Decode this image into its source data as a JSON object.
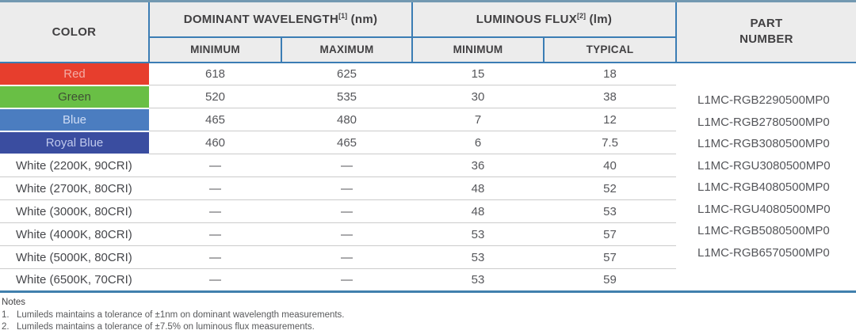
{
  "table": {
    "headers": {
      "color": "COLOR",
      "dominant_wavelength": "DOMINANT WAVELENGTH",
      "dominant_wavelength_ref": "[1]",
      "dominant_wavelength_unit": " (nm)",
      "luminous_flux": "LUMINOUS FLUX",
      "luminous_flux_ref": "[2]",
      "luminous_flux_unit": " (lm)",
      "part_line1": "PART",
      "part_line2": "NUMBER",
      "wl_min": "MINIMUM",
      "wl_max": "MAXIMUM",
      "flux_min": "MINIMUM",
      "flux_typ": "TYPICAL"
    },
    "rows": [
      {
        "label": "Red",
        "swatch": "#e73e2d",
        "label_color": "#f3aca4",
        "wl_min": "618",
        "wl_max": "625",
        "flux_min": "15",
        "flux_typ": "18"
      },
      {
        "label": "Green",
        "swatch": "#69bf45",
        "label_color": "#3f4f35",
        "wl_min": "520",
        "wl_max": "535",
        "flux_min": "30",
        "flux_typ": "38"
      },
      {
        "label": "Blue",
        "swatch": "#4b7dc0",
        "label_color": "#cfdcf4",
        "wl_min": "465",
        "wl_max": "480",
        "flux_min": "7",
        "flux_typ": "12"
      },
      {
        "label": "Royal Blue",
        "swatch": "#3a4da0",
        "label_color": "#bfc9ec",
        "wl_min": "460",
        "wl_max": "465",
        "flux_min": "6",
        "flux_typ": "7.5"
      },
      {
        "label": "White (2200K, 90CRI)",
        "swatch": null,
        "label_color": null,
        "wl_min": "—",
        "wl_max": "—",
        "flux_min": "36",
        "flux_typ": "40"
      },
      {
        "label": "White (2700K, 80CRI)",
        "swatch": null,
        "label_color": null,
        "wl_min": "—",
        "wl_max": "—",
        "flux_min": "48",
        "flux_typ": "52"
      },
      {
        "label": "White (3000K, 80CRI)",
        "swatch": null,
        "label_color": null,
        "wl_min": "—",
        "wl_max": "—",
        "flux_min": "48",
        "flux_typ": "53"
      },
      {
        "label": "White (4000K, 80CRI)",
        "swatch": null,
        "label_color": null,
        "wl_min": "—",
        "wl_max": "—",
        "flux_min": "53",
        "flux_typ": "57"
      },
      {
        "label": "White (5000K, 80CRI)",
        "swatch": null,
        "label_color": null,
        "wl_min": "—",
        "wl_max": "—",
        "flux_min": "53",
        "flux_typ": "57"
      },
      {
        "label": "White (6500K, 70CRI)",
        "swatch": null,
        "label_color": null,
        "wl_min": "—",
        "wl_max": "—",
        "flux_min": "53",
        "flux_typ": "59"
      }
    ],
    "part_numbers": [
      "L1MC-RGB2290500MP0",
      "L1MC-RGB2780500MP0",
      "L1MC-RGB3080500MP0",
      "L1MC-RGU3080500MP0",
      "L1MC-RGB4080500MP0",
      "L1MC-RGU4080500MP0",
      "L1MC-RGB5080500MP0",
      "L1MC-RGB6570500MP0"
    ]
  },
  "notes": {
    "title": "Notes",
    "items": [
      {
        "num": "1.",
        "text": "Lumileds maintains a tolerance of ±1nm on dominant wavelength measurements."
      },
      {
        "num": "2.",
        "text": "Lumileds maintains a tolerance of ±7.5% on luminous flux measurements."
      }
    ]
  },
  "colors": {
    "header_bg": "#ececec",
    "header_text": "#414042",
    "body_text": "#55565a",
    "border_blue": "#3b7db4",
    "table_top_border": "#7399b1",
    "table_bottom_border": "#4080ad",
    "row_separator": "#cbcbcb"
  }
}
